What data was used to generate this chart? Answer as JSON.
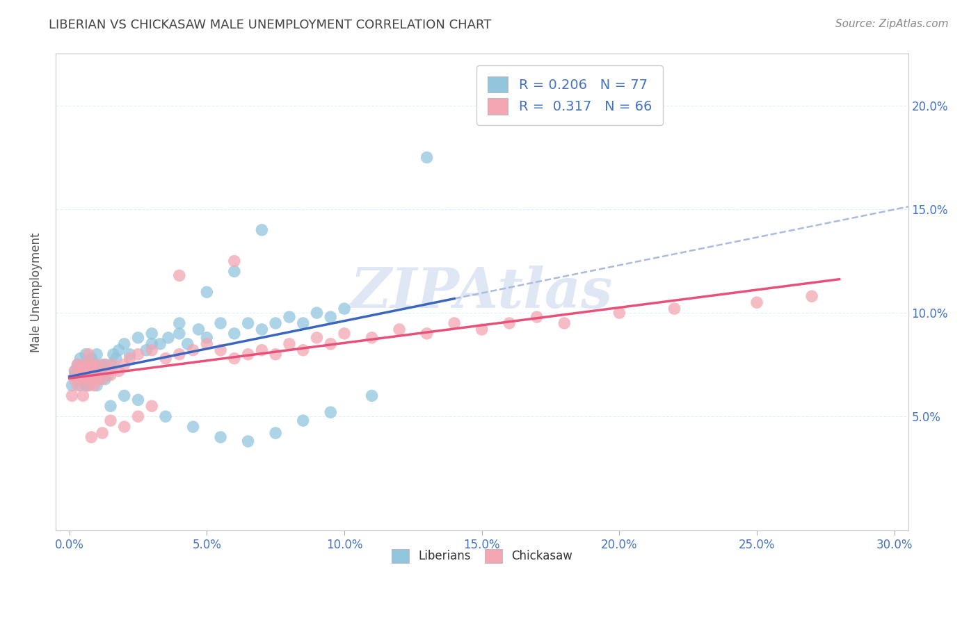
{
  "title": "LIBERIAN VS CHICKASAW MALE UNEMPLOYMENT CORRELATION CHART",
  "source": "Source: ZipAtlas.com",
  "ylabel": "Male Unemployment",
  "yticks": [
    0.05,
    0.1,
    0.15,
    0.2
  ],
  "ytick_labels": [
    "5.0%",
    "10.0%",
    "15.0%",
    "20.0%"
  ],
  "xticks": [
    0.0,
    0.05,
    0.1,
    0.15,
    0.2,
    0.25,
    0.3
  ],
  "xtick_labels": [
    "0.0%",
    "5.0%",
    "10.0%",
    "15.0%",
    "20.0%",
    "25.0%",
    "30.0%"
  ],
  "xlim": [
    -0.005,
    0.305
  ],
  "ylim": [
    -0.005,
    0.225
  ],
  "legend_r1": "0.206",
  "legend_n1": "77",
  "legend_r2": "0.317",
  "legend_n2": "66",
  "liberian_color": "#92C5DE",
  "chickasaw_color": "#F4A6B2",
  "trend_liberian_color": "#3A66C0",
  "trend_chickasaw_color": "#E8507A",
  "dashed_line_color": "#AABBDD",
  "watermark_color": "#C8D8EC",
  "background_color": "#FFFFFF",
  "grid_color": "#DDEEFF",
  "liberian_x": [
    0.001,
    0.002,
    0.002,
    0.003,
    0.003,
    0.003,
    0.004,
    0.004,
    0.004,
    0.005,
    0.005,
    0.005,
    0.006,
    0.006,
    0.006,
    0.006,
    0.007,
    0.007,
    0.007,
    0.007,
    0.008,
    0.008,
    0.008,
    0.009,
    0.009,
    0.01,
    0.01,
    0.01,
    0.011,
    0.011,
    0.012,
    0.012,
    0.013,
    0.013,
    0.014,
    0.015,
    0.016,
    0.017,
    0.018,
    0.02,
    0.022,
    0.025,
    0.028,
    0.03,
    0.033,
    0.036,
    0.04,
    0.043,
    0.047,
    0.05,
    0.055,
    0.06,
    0.065,
    0.07,
    0.075,
    0.08,
    0.085,
    0.09,
    0.095,
    0.1,
    0.06,
    0.07,
    0.04,
    0.05,
    0.03,
    0.02,
    0.015,
    0.025,
    0.035,
    0.045,
    0.055,
    0.065,
    0.075,
    0.085,
    0.095,
    0.11,
    0.13
  ],
  "liberian_y": [
    0.065,
    0.07,
    0.072,
    0.068,
    0.075,
    0.073,
    0.065,
    0.07,
    0.078,
    0.072,
    0.068,
    0.075,
    0.07,
    0.065,
    0.08,
    0.073,
    0.068,
    0.075,
    0.07,
    0.065,
    0.073,
    0.07,
    0.078,
    0.068,
    0.075,
    0.07,
    0.065,
    0.08,
    0.072,
    0.068,
    0.075,
    0.07,
    0.068,
    0.075,
    0.07,
    0.075,
    0.08,
    0.078,
    0.082,
    0.085,
    0.08,
    0.088,
    0.082,
    0.09,
    0.085,
    0.088,
    0.09,
    0.085,
    0.092,
    0.088,
    0.095,
    0.09,
    0.095,
    0.092,
    0.095,
    0.098,
    0.095,
    0.1,
    0.098,
    0.102,
    0.12,
    0.14,
    0.095,
    0.11,
    0.085,
    0.06,
    0.055,
    0.058,
    0.05,
    0.045,
    0.04,
    0.038,
    0.042,
    0.048,
    0.052,
    0.06,
    0.175
  ],
  "chickasaw_x": [
    0.001,
    0.002,
    0.002,
    0.003,
    0.003,
    0.004,
    0.004,
    0.005,
    0.005,
    0.005,
    0.006,
    0.006,
    0.007,
    0.007,
    0.007,
    0.008,
    0.008,
    0.009,
    0.009,
    0.01,
    0.01,
    0.011,
    0.012,
    0.013,
    0.014,
    0.015,
    0.016,
    0.018,
    0.02,
    0.022,
    0.025,
    0.03,
    0.035,
    0.04,
    0.045,
    0.05,
    0.055,
    0.06,
    0.065,
    0.07,
    0.075,
    0.08,
    0.085,
    0.09,
    0.095,
    0.1,
    0.11,
    0.12,
    0.13,
    0.14,
    0.15,
    0.16,
    0.17,
    0.18,
    0.2,
    0.22,
    0.25,
    0.27,
    0.04,
    0.06,
    0.03,
    0.025,
    0.015,
    0.02,
    0.012,
    0.008
  ],
  "chickasaw_y": [
    0.06,
    0.068,
    0.072,
    0.065,
    0.075,
    0.068,
    0.072,
    0.06,
    0.07,
    0.075,
    0.068,
    0.072,
    0.065,
    0.075,
    0.08,
    0.068,
    0.075,
    0.065,
    0.072,
    0.068,
    0.075,
    0.07,
    0.068,
    0.075,
    0.072,
    0.07,
    0.075,
    0.072,
    0.075,
    0.078,
    0.08,
    0.082,
    0.078,
    0.08,
    0.082,
    0.085,
    0.082,
    0.078,
    0.08,
    0.082,
    0.08,
    0.085,
    0.082,
    0.088,
    0.085,
    0.09,
    0.088,
    0.092,
    0.09,
    0.095,
    0.092,
    0.095,
    0.098,
    0.095,
    0.1,
    0.102,
    0.105,
    0.108,
    0.118,
    0.125,
    0.055,
    0.05,
    0.048,
    0.045,
    0.042,
    0.04
  ]
}
